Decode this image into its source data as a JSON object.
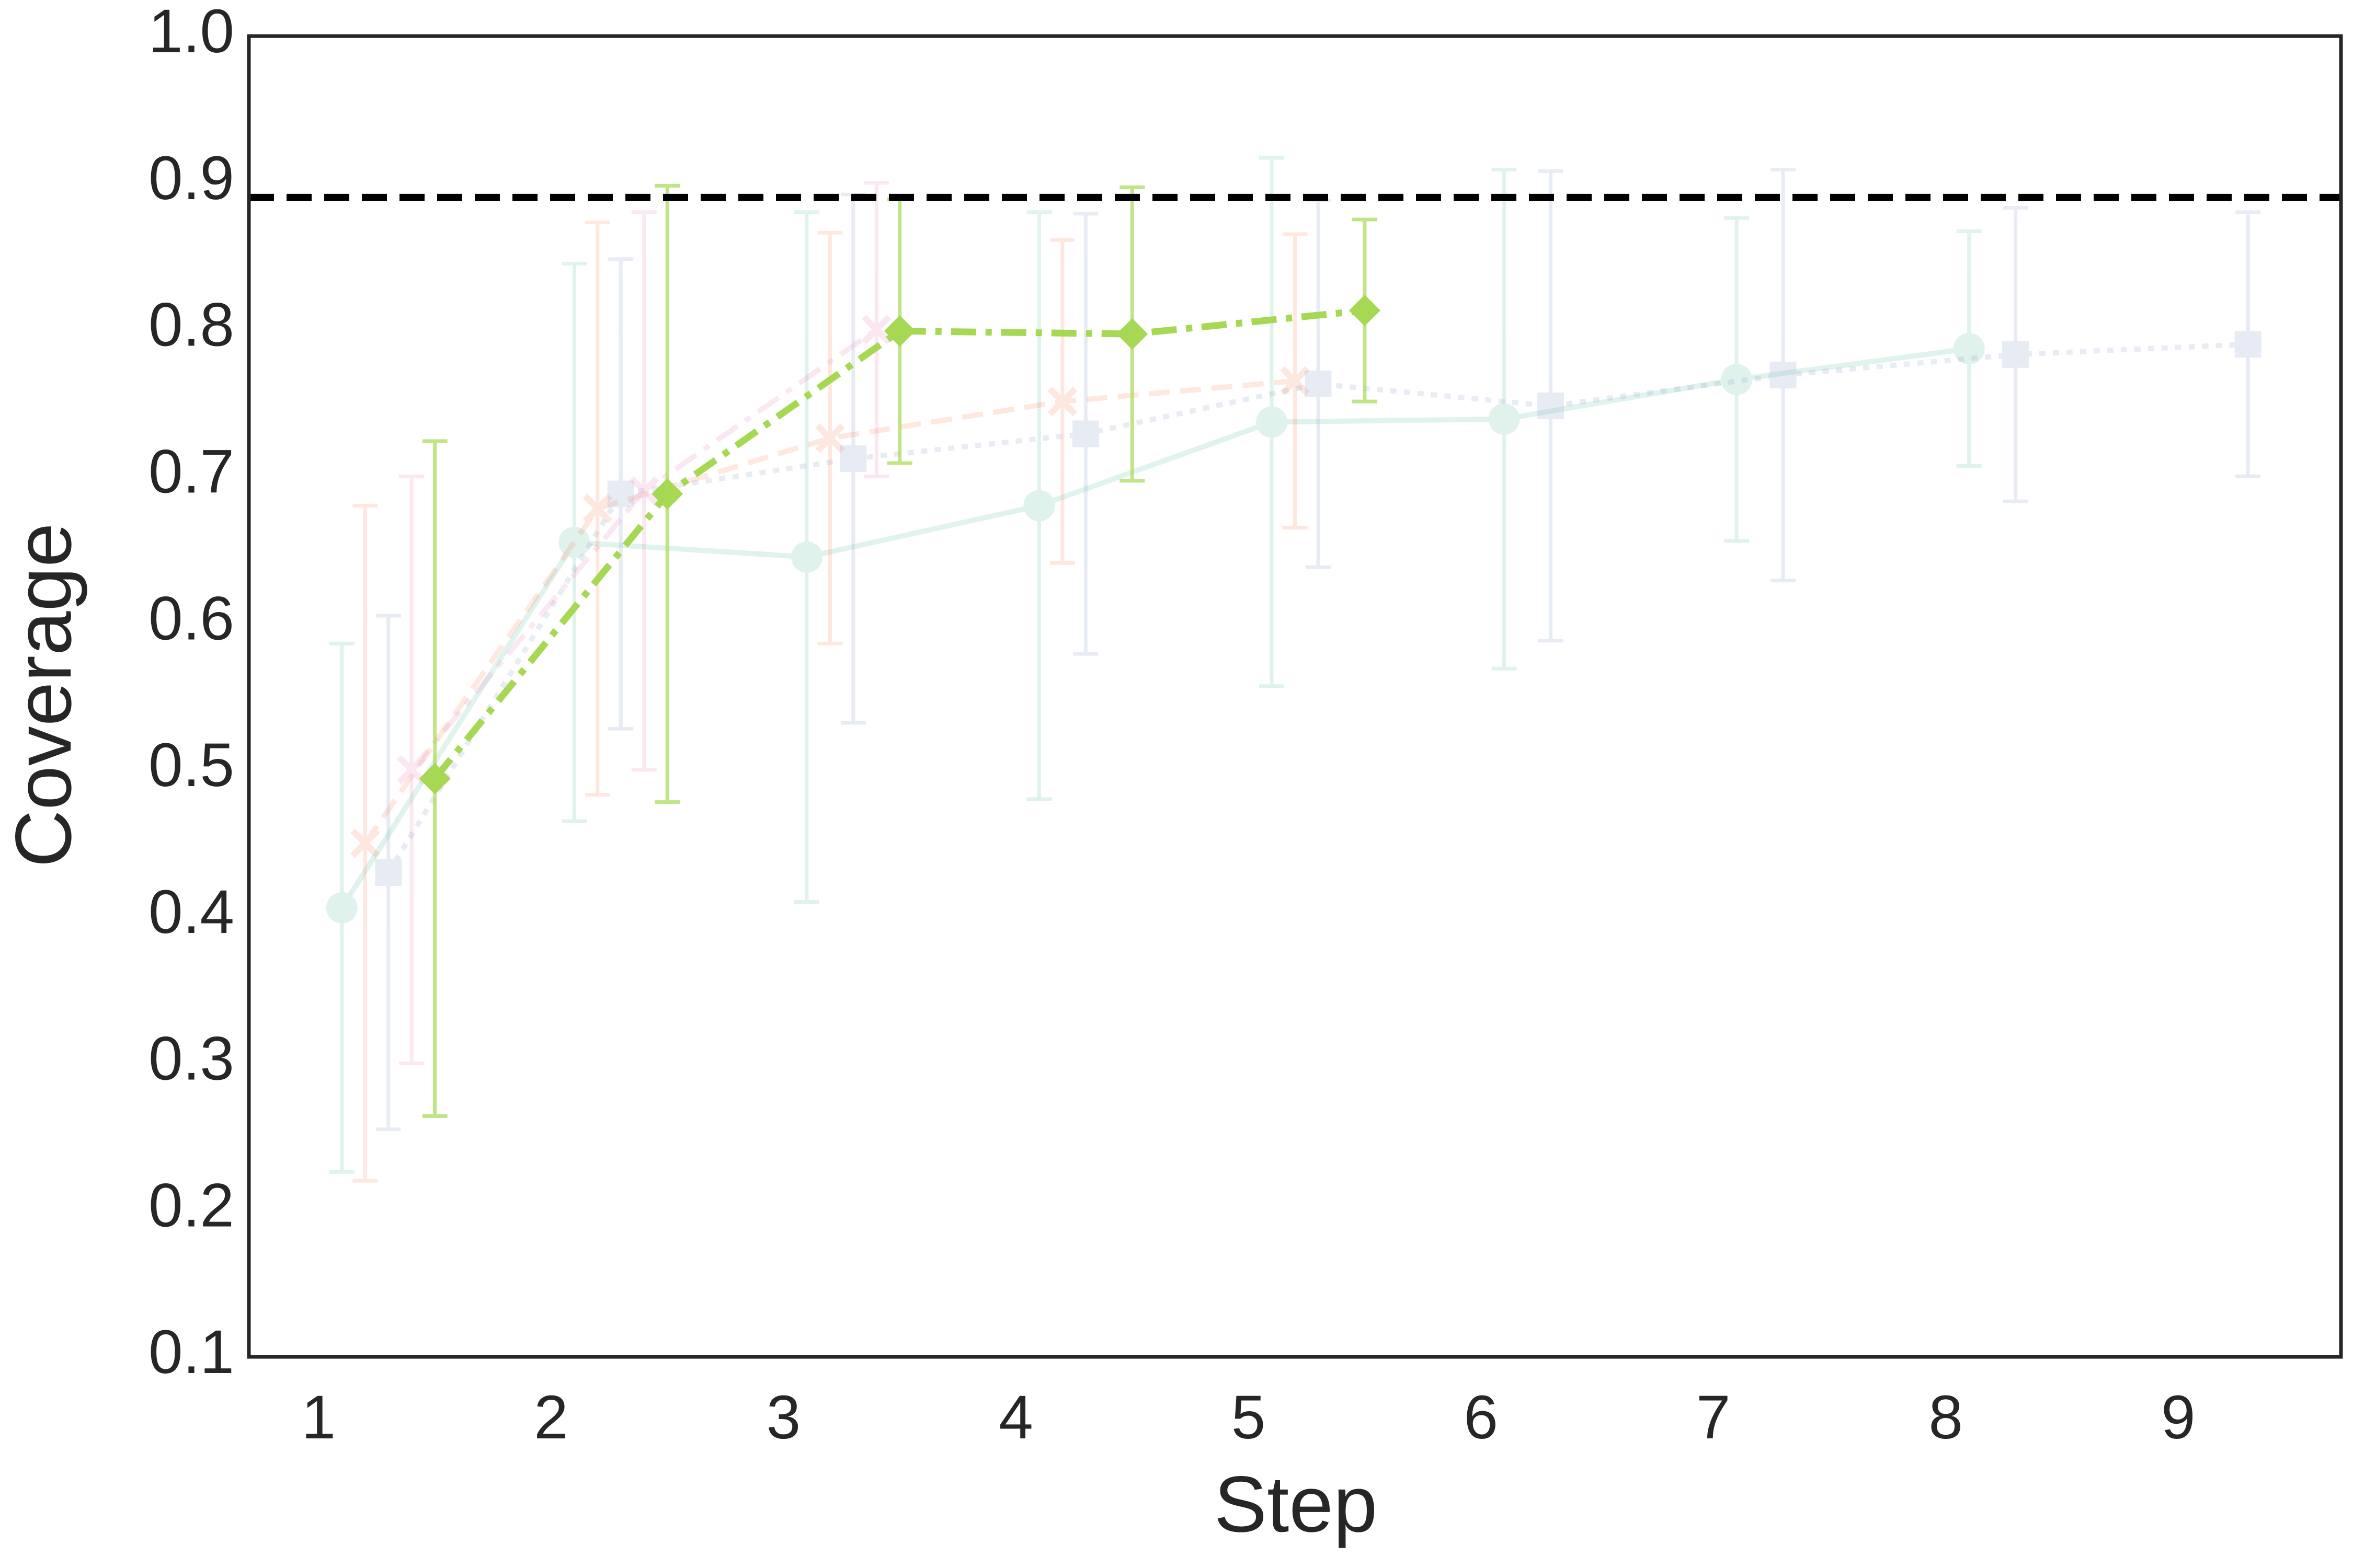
{
  "chart_data": {
    "type": "line",
    "xlabel": "Step",
    "ylabel": "Coverage",
    "xlim": [
      0.7,
      9.7
    ],
    "ylim": [
      0.1,
      1.0
    ],
    "xticks": [
      1,
      2,
      3,
      4,
      5,
      6,
      7,
      8,
      9
    ],
    "yticks": [
      0.1,
      0.2,
      0.3,
      0.4,
      0.5,
      0.6,
      0.7,
      0.8,
      0.9,
      {
        "value": 1,
        "label": "1.0"
      }
    ],
    "grid": false,
    "hline": {
      "value": 0.89,
      "color": "#000000",
      "linestyle": "dashed"
    },
    "series": [
      {
        "color": "#66c2a5",
        "opacity": 0.2,
        "linestyle": "solid",
        "marker": "circle",
        "x": [
          1.1,
          2.1,
          3.1,
          4.1,
          5.1,
          6.1,
          7.1,
          8.1
        ],
        "values": [
          0.406,
          0.655,
          0.645,
          0.68,
          0.737,
          0.739,
          0.766,
          0.787
        ],
        "errors": [
          0.18,
          0.19,
          0.235,
          0.2,
          0.18,
          0.17,
          0.11,
          0.08
        ]
      },
      {
        "color": "#fc8d62",
        "opacity": 0.2,
        "linestyle": "dashed",
        "marker": "x",
        "x": [
          1.2,
          2.2,
          3.2,
          4.2,
          5.2
        ],
        "values": [
          0.45,
          0.678,
          0.726,
          0.751,
          0.765
        ],
        "errors": [
          0.23,
          0.195,
          0.14,
          0.11,
          0.1
        ]
      },
      {
        "color": "#8da0cb",
        "opacity": 0.2,
        "linestyle": "dotted",
        "marker": "square",
        "x": [
          1.3,
          2.3,
          3.3,
          4.3,
          5.3,
          6.3,
          7.3,
          8.3,
          9.3
        ],
        "values": [
          0.43,
          0.688,
          0.712,
          0.729,
          0.763,
          0.748,
          0.769,
          0.783,
          0.79
        ],
        "errors": [
          0.175,
          0.16,
          0.18,
          0.15,
          0.125,
          0.16,
          0.14,
          0.1,
          0.09
        ]
      },
      {
        "color": "#e78ac3",
        "opacity": 0.2,
        "linestyle": "dashdot",
        "marker": "x",
        "x": [
          1.4,
          2.4,
          3.4
        ],
        "values": [
          0.5,
          0.69,
          0.8
        ],
        "errors": [
          0.2,
          0.19,
          0.1
        ]
      },
      {
        "color": "#a6d854",
        "opacity": 1,
        "linestyle": "dashdot",
        "marker": "diamond",
        "x": [
          1.5,
          2.5,
          3.5,
          4.5,
          5.5
        ],
        "values": [
          0.494,
          0.688,
          0.799,
          0.797,
          0.813
        ],
        "errors": [
          0.23,
          0.21,
          0.09,
          0.1,
          0.062
        ]
      }
    ]
  }
}
